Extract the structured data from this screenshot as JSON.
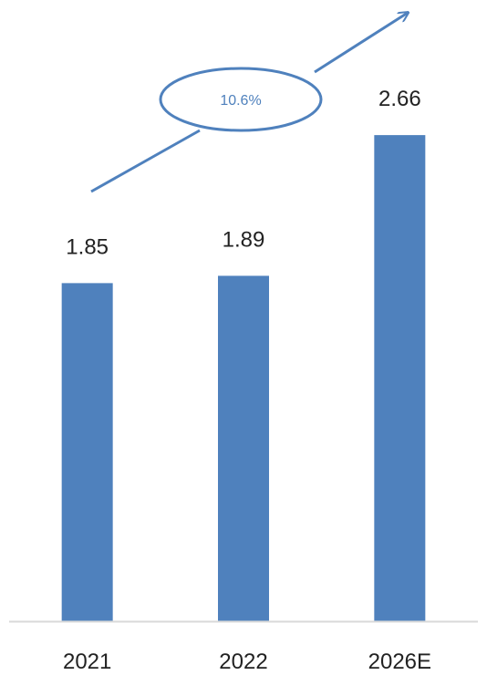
{
  "chart_data": {
    "type": "bar",
    "categories": [
      "2021",
      "2022",
      "2026E"
    ],
    "values": [
      1.85,
      1.89,
      2.66
    ],
    "value_labels": [
      "1.85",
      "1.89",
      "2.66"
    ],
    "title": "",
    "xlabel": "",
    "ylabel": "",
    "ylim": [
      0,
      3.0
    ],
    "grid": false,
    "legend": "none",
    "annotation": {
      "text": "10.6%",
      "type": "growth-arrow"
    },
    "colors": {
      "bar": "#4F81BD",
      "arrow": "#4F81BD",
      "annotation_text": "#4F81BD",
      "axis": "#D9D9D9",
      "text": "#222222"
    }
  }
}
